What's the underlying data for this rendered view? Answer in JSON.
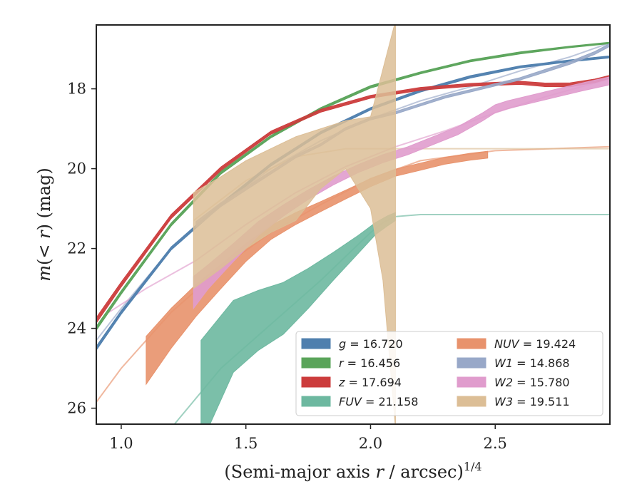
{
  "chart_data": {
    "type": "area",
    "xlabel": "(Semi-major axis r / arcsec)^1/4",
    "ylabel": "m(< r) (mag)",
    "xlim": [
      0.9,
      2.96
    ],
    "ylim": [
      26.4,
      16.4
    ],
    "y_inverted": true,
    "xticks": [
      1.0,
      1.5,
      2.0,
      2.5
    ],
    "xtick_labels": [
      "1.0",
      "1.5",
      "2.0",
      "2.5"
    ],
    "yticks": [
      18,
      20,
      22,
      24,
      26
    ],
    "ytick_labels": [
      "18",
      "20",
      "22",
      "24",
      "26"
    ],
    "grid": false,
    "legend_position": "lower-right",
    "series": [
      {
        "band": "g",
        "label_var": "g",
        "label_val": "= 16.720",
        "color": "#4f7fae",
        "x": [
          0.9,
          1.0,
          1.2,
          1.4,
          1.6,
          1.8,
          2.0,
          2.2,
          2.4,
          2.6,
          2.8,
          2.96
        ],
        "y": [
          24.5,
          23.6,
          22.0,
          20.9,
          19.9,
          19.1,
          18.5,
          18.05,
          17.7,
          17.45,
          17.3,
          17.2
        ],
        "width": [
          0.1,
          0.09,
          0.08,
          0.07,
          0.07,
          0.06,
          0.06,
          0.06,
          0.06,
          0.05,
          0.05,
          0.05
        ],
        "measured_max_x": 2.85
      },
      {
        "band": "r",
        "label_var": "r",
        "label_val": "= 16.456",
        "color": "#5aa45a",
        "x": [
          0.9,
          1.0,
          1.2,
          1.4,
          1.6,
          1.8,
          2.0,
          2.2,
          2.4,
          2.6,
          2.8,
          2.96
        ],
        "y": [
          24.0,
          23.1,
          21.4,
          20.1,
          19.2,
          18.5,
          17.95,
          17.6,
          17.3,
          17.1,
          16.95,
          16.85
        ],
        "width": [
          0.1,
          0.09,
          0.08,
          0.07,
          0.06,
          0.06,
          0.06,
          0.05,
          0.05,
          0.05,
          0.04,
          0.04
        ],
        "measured_max_x": 2.7
      },
      {
        "band": "z",
        "label_var": "z",
        "label_val": "= 17.694",
        "color": "#cc3c3c",
        "x": [
          0.9,
          1.0,
          1.2,
          1.4,
          1.6,
          1.8,
          2.0,
          2.2,
          2.4,
          2.6,
          2.7,
          2.8,
          2.9,
          2.96
        ],
        "y": [
          23.8,
          22.9,
          21.2,
          20.0,
          19.1,
          18.55,
          18.2,
          18.0,
          17.9,
          17.85,
          17.9,
          17.9,
          17.8,
          17.7
        ],
        "width": [
          0.14,
          0.12,
          0.1,
          0.09,
          0.08,
          0.07,
          0.07,
          0.07,
          0.07,
          0.08,
          0.09,
          0.1,
          0.09,
          0.08
        ],
        "measured_max_x": 2.96
      },
      {
        "band": "FUV",
        "label_var": "FUV",
        "label_val": "= 21.158",
        "color": "#6db8a0",
        "x": [
          1.32,
          1.45,
          1.55,
          1.65,
          1.75,
          1.85,
          1.95,
          2.02,
          2.07,
          2.1
        ],
        "y": [
          25.6,
          24.2,
          23.8,
          23.5,
          23.0,
          22.45,
          21.9,
          21.5,
          21.3,
          21.2
        ],
        "width": [
          2.6,
          1.8,
          1.5,
          1.3,
          1.0,
          0.7,
          0.45,
          0.3,
          0.25,
          0.2
        ],
        "model": {
          "x": [
            1.2,
            1.4,
            1.6,
            1.8,
            1.9,
            2.0,
            2.05,
            2.1,
            2.2,
            2.5,
            2.96
          ],
          "y": [
            26.5,
            25.0,
            23.9,
            22.8,
            22.2,
            21.6,
            21.35,
            21.2,
            21.15,
            21.15,
            21.15
          ]
        },
        "measured_max_x": 2.1
      },
      {
        "band": "NUV",
        "label_var": "NUV",
        "label_val": "= 19.424",
        "color": "#e8926c",
        "x": [
          1.1,
          1.2,
          1.3,
          1.4,
          1.5,
          1.6,
          1.7,
          1.8,
          1.9,
          2.0,
          2.1,
          2.2,
          2.3,
          2.4,
          2.47
        ],
        "y": [
          24.8,
          24.0,
          23.3,
          22.7,
          22.1,
          21.6,
          21.25,
          20.95,
          20.65,
          20.35,
          20.1,
          19.95,
          19.8,
          19.7,
          19.65
        ],
        "width": [
          1.2,
          1.0,
          0.8,
          0.6,
          0.45,
          0.35,
          0.3,
          0.25,
          0.22,
          0.2,
          0.18,
          0.18,
          0.17,
          0.17,
          0.17
        ],
        "model": {
          "x": [
            0.9,
            1.0,
            1.2,
            1.4,
            1.6,
            1.8,
            2.0,
            2.2,
            2.5,
            2.96
          ],
          "y": [
            25.85,
            25.0,
            23.6,
            22.5,
            21.6,
            20.9,
            20.25,
            19.8,
            19.55,
            19.45
          ]
        },
        "measured_max_x": 2.47
      },
      {
        "band": "W1",
        "label_var": "W1",
        "label_val": "= 14.868",
        "color": "#98a8c8",
        "x": [
          1.3,
          1.4,
          1.5,
          1.6,
          1.7,
          1.8,
          1.9,
          2.0,
          2.1,
          2.2,
          2.3,
          2.4,
          2.5,
          2.6,
          2.7,
          2.8,
          2.9,
          2.96
        ],
        "y": [
          21.4,
          20.9,
          20.5,
          20.1,
          19.7,
          19.4,
          19.0,
          18.75,
          18.6,
          18.4,
          18.2,
          18.05,
          17.9,
          17.75,
          17.55,
          17.35,
          17.1,
          16.9
        ],
        "width": [
          0.15,
          0.1,
          0.08,
          0.07,
          0.06,
          0.06,
          0.06,
          0.06,
          0.06,
          0.06,
          0.06,
          0.06,
          0.06,
          0.06,
          0.07,
          0.07,
          0.07,
          0.07
        ],
        "model": {
          "x": [
            0.9,
            1.0,
            1.2,
            1.4,
            1.6,
            1.8,
            2.0,
            2.2,
            2.4,
            2.6,
            2.8,
            2.96
          ],
          "y": [
            24.3,
            23.5,
            22.0,
            20.9,
            20.0,
            19.3,
            18.75,
            18.3,
            17.95,
            17.55,
            17.2,
            16.85
          ]
        },
        "measured_max_x": 2.96
      },
      {
        "band": "W2",
        "label_var": "W2",
        "label_val": "= 15.780",
        "color": "#e09ccd",
        "x": [
          1.29,
          1.35,
          1.45,
          1.55,
          1.65,
          1.75,
          1.85,
          1.95,
          2.05,
          2.15,
          2.25,
          2.35,
          2.45,
          2.5,
          2.55,
          2.65,
          2.75,
          2.85,
          2.96
        ],
        "y": [
          23.1,
          22.7,
          22.1,
          21.5,
          21.05,
          20.65,
          20.3,
          20.0,
          19.75,
          19.55,
          19.3,
          19.05,
          18.7,
          18.5,
          18.4,
          18.25,
          18.1,
          17.95,
          17.8
        ],
        "width": [
          0.8,
          0.6,
          0.45,
          0.35,
          0.28,
          0.24,
          0.22,
          0.2,
          0.2,
          0.2,
          0.2,
          0.2,
          0.2,
          0.2,
          0.2,
          0.2,
          0.2,
          0.2,
          0.2
        ],
        "model": {
          "x": [
            0.95,
            1.1,
            1.3,
            1.5,
            1.7,
            1.9,
            2.1,
            2.3,
            2.5,
            2.7,
            2.96
          ],
          "y": [
            23.6,
            23.0,
            22.3,
            21.4,
            20.6,
            19.95,
            19.45,
            19.05,
            18.6,
            18.2,
            17.75
          ]
        },
        "measured_max_x": 2.96
      },
      {
        "band": "W3",
        "label_var": "W3",
        "label_val": "= 19.511",
        "color": "#dcbe96",
        "x": [
          1.29,
          1.4,
          1.5,
          1.6,
          1.7,
          1.8,
          1.9,
          2.0,
          2.05,
          2.1
        ],
        "y_upper": [
          20.6,
          20.2,
          19.8,
          19.5,
          19.2,
          19.0,
          18.8,
          18.7,
          17.5,
          16.3
        ],
        "y_lower": [
          23.0,
          22.5,
          22.0,
          21.6,
          21.3,
          20.5,
          20.0,
          21.0,
          22.8,
          26.5
        ],
        "model": {
          "x": [
            1.29,
            1.5,
            1.7,
            1.9,
            2.1,
            2.5,
            2.96
          ],
          "y": [
            21.3,
            20.3,
            19.7,
            19.5,
            19.5,
            19.5,
            19.5
          ]
        },
        "measured_max_x": 2.1
      }
    ]
  }
}
